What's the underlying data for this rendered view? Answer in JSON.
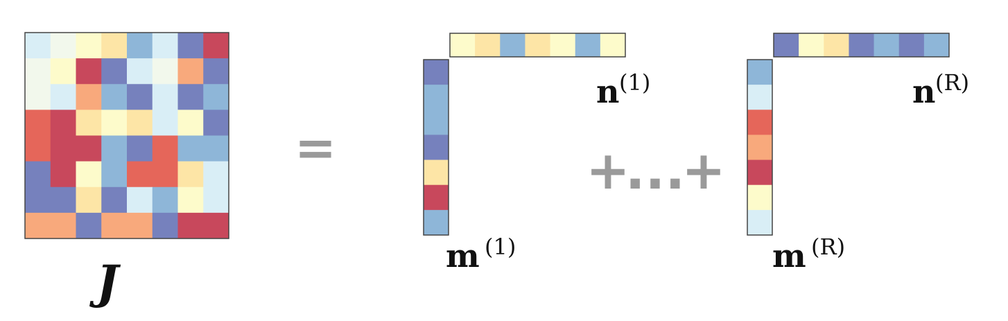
{
  "palette": [
    "#7681bd",
    "#8eb6d8",
    "#d9eef6",
    "#f2f8ec",
    "#fdfbcb",
    "#fde5a6",
    "#f8a97c",
    "#e5665a",
    "#c8485c"
  ],
  "matrix_J": {
    "label": "J",
    "rows": [
      [
        2,
        3,
        4,
        5,
        1,
        2,
        0,
        8
      ],
      [
        3,
        4,
        8,
        0,
        2,
        3,
        6,
        0
      ],
      [
        3,
        2,
        6,
        1,
        0,
        2,
        0,
        1
      ],
      [
        7,
        8,
        5,
        4,
        5,
        2,
        4,
        0
      ],
      [
        7,
        8,
        8,
        1,
        0,
        7,
        1,
        1
      ],
      [
        0,
        8,
        4,
        1,
        7,
        7,
        5,
        2
      ],
      [
        0,
        0,
        5,
        0,
        2,
        1,
        4,
        2
      ],
      [
        6,
        6,
        0,
        6,
        6,
        0,
        8,
        8
      ]
    ]
  },
  "equals_sign": "=",
  "plus_sign": "+",
  "ellipsis": "...",
  "term_1": {
    "n_label": "n",
    "n_superscript": "(1)",
    "m_label": "m",
    "m_superscript": "(1)",
    "n_cells": [
      4,
      5,
      1,
      5,
      4,
      1,
      4
    ],
    "m_cells": [
      0,
      1,
      1,
      0,
      5,
      8,
      1
    ]
  },
  "term_R": {
    "n_label": "n",
    "n_superscript": "(R)",
    "m_label": "m",
    "m_superscript": "(R)",
    "n_cells": [
      0,
      4,
      5,
      0,
      1,
      0,
      1
    ],
    "m_cells": [
      1,
      2,
      7,
      6,
      8,
      4,
      2
    ]
  }
}
